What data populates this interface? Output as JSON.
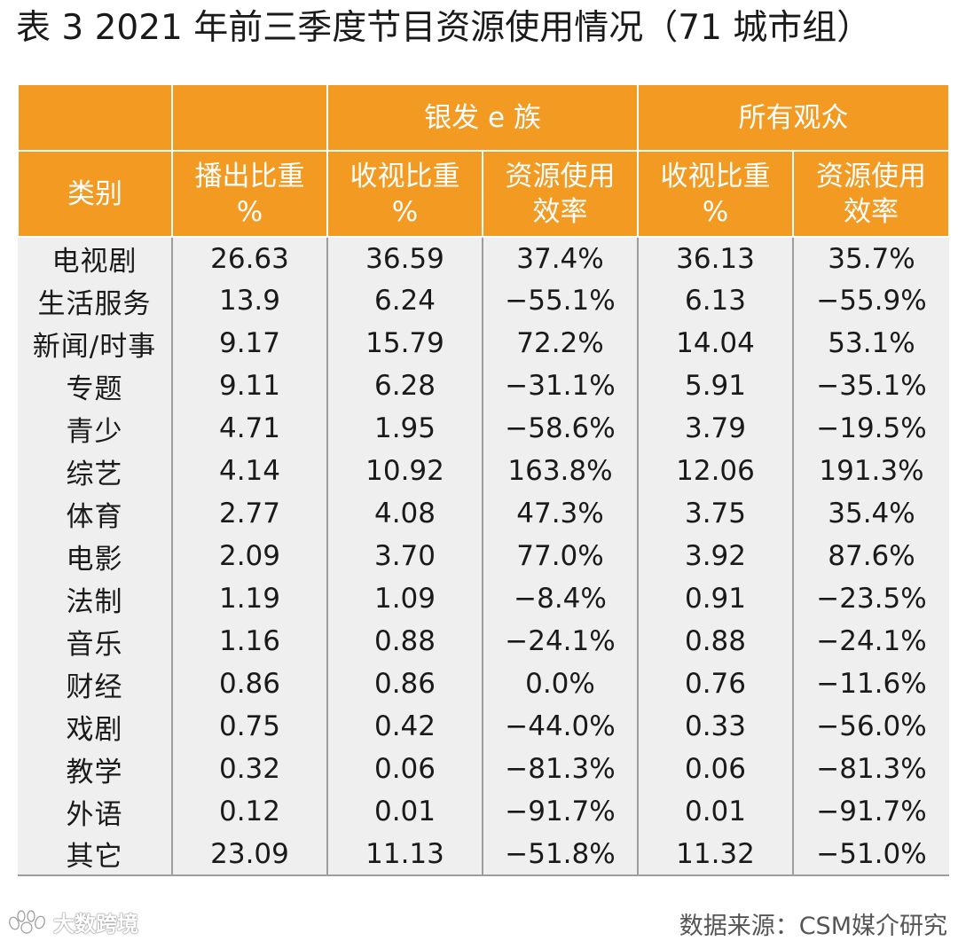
{
  "title": "表 3  2021 年前三季度节目资源使用情况（71 城市组）",
  "header": {
    "group_silver": "银发 e 族",
    "group_all": "所有观众",
    "col_category": "类别",
    "col_broadcast_line1": "播出比重",
    "col_broadcast_line2": "%",
    "col_silver_view_line1": "收视比重",
    "col_silver_view_line2": "%",
    "col_silver_eff_line1": "资源使用",
    "col_silver_eff_line2": "效率",
    "col_all_view_line1": "收视比重",
    "col_all_view_line2": "%",
    "col_all_eff_line1": "资源使用",
    "col_all_eff_line2": "效率"
  },
  "rows": [
    {
      "category": "电视剧",
      "broadcast": "26.63",
      "silver_view": "36.59",
      "silver_eff": "37.4%",
      "all_view": "36.13",
      "all_eff": "35.7%"
    },
    {
      "category": "生活服务",
      "broadcast": "13.9",
      "silver_view": "6.24",
      "silver_eff": "−55.1%",
      "all_view": "6.13",
      "all_eff": "−55.9%"
    },
    {
      "category": "新闻/时事",
      "broadcast": "9.17",
      "silver_view": "15.79",
      "silver_eff": "72.2%",
      "all_view": "14.04",
      "all_eff": "53.1%"
    },
    {
      "category": "专题",
      "broadcast": "9.11",
      "silver_view": "6.28",
      "silver_eff": "−31.1%",
      "all_view": "5.91",
      "all_eff": "−35.1%"
    },
    {
      "category": "青少",
      "broadcast": "4.71",
      "silver_view": "1.95",
      "silver_eff": "−58.6%",
      "all_view": "3.79",
      "all_eff": "−19.5%"
    },
    {
      "category": "综艺",
      "broadcast": "4.14",
      "silver_view": "10.92",
      "silver_eff": "163.8%",
      "all_view": "12.06",
      "all_eff": "191.3%"
    },
    {
      "category": "体育",
      "broadcast": "2.77",
      "silver_view": "4.08",
      "silver_eff": "47.3%",
      "all_view": "3.75",
      "all_eff": "35.4%"
    },
    {
      "category": "电影",
      "broadcast": "2.09",
      "silver_view": "3.70",
      "silver_eff": "77.0%",
      "all_view": "3.92",
      "all_eff": "87.6%"
    },
    {
      "category": "法制",
      "broadcast": "1.19",
      "silver_view": "1.09",
      "silver_eff": "−8.4%",
      "all_view": "0.91",
      "all_eff": "−23.5%"
    },
    {
      "category": "音乐",
      "broadcast": "1.16",
      "silver_view": "0.88",
      "silver_eff": "−24.1%",
      "all_view": "0.88",
      "all_eff": "−24.1%"
    },
    {
      "category": "财经",
      "broadcast": "0.86",
      "silver_view": "0.86",
      "silver_eff": "0.0%",
      "all_view": "0.76",
      "all_eff": "−11.6%"
    },
    {
      "category": "戏剧",
      "broadcast": "0.75",
      "silver_view": "0.42",
      "silver_eff": "−44.0%",
      "all_view": "0.33",
      "all_eff": "−56.0%"
    },
    {
      "category": "教学",
      "broadcast": "0.32",
      "silver_view": "0.06",
      "silver_eff": "−81.3%",
      "all_view": "0.06",
      "all_eff": "−81.3%"
    },
    {
      "category": "外语",
      "broadcast": "0.12",
      "silver_view": "0.01",
      "silver_eff": "−91.7%",
      "all_view": "0.01",
      "all_eff": "−91.7%"
    },
    {
      "category": "其它",
      "broadcast": "23.09",
      "silver_view": "11.13",
      "silver_eff": "−51.8%",
      "all_view": "11.32",
      "all_eff": "−51.0%"
    }
  ],
  "watermark": {
    "text": "大数跨境",
    "icon": "paw-logo-icon"
  },
  "source": "数据来源：CSM媒介研究",
  "colors": {
    "header_bg": "#f29a22",
    "body_bg": "#efefef",
    "rule": "#9d9d9d"
  }
}
